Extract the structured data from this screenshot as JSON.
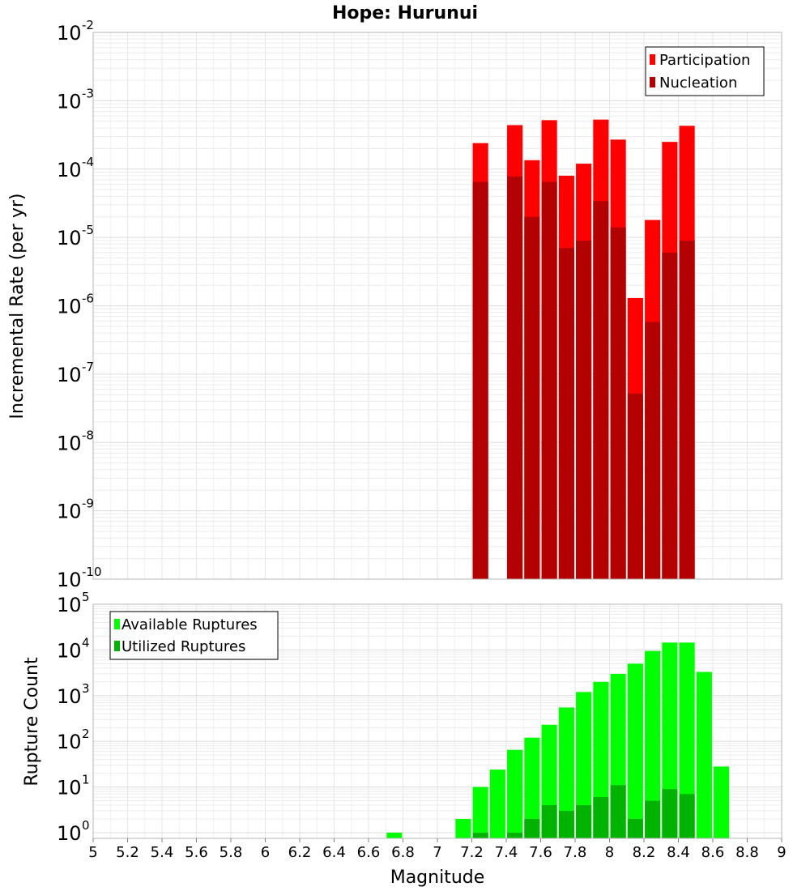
{
  "chart_data": [
    {
      "type": "bar",
      "title": "Hope: Hurunui",
      "xlabel": "",
      "ylabel": "Incremental Rate (per yr)",
      "yscale": "log",
      "xlim": [
        5,
        9
      ],
      "ylim": [
        1e-10,
        0.01
      ],
      "bar_width": 0.1,
      "legend_position": "top-right",
      "x": [
        7.25,
        7.45,
        7.55,
        7.65,
        7.75,
        7.85,
        7.95,
        8.05,
        8.15,
        8.25,
        8.35,
        8.45
      ],
      "series": [
        {
          "name": "Participation",
          "color": "#ff0000",
          "values": [
            0.00024,
            0.00044,
            0.000135,
            0.00052,
            8e-05,
            0.00012,
            0.00053,
            0.00027,
            1.3e-06,
            1.8e-05,
            0.00025,
            0.00043
          ]
        },
        {
          "name": "Nucleation",
          "color": "#b30000",
          "values": [
            6.5e-05,
            7.8e-05,
            2e-05,
            6.5e-05,
            7e-06,
            9e-06,
            3.4e-05,
            1.4e-05,
            5.2e-08,
            5.8e-07,
            6e-06,
            9e-06
          ]
        }
      ],
      "y_ticks": [
        {
          "base": "10",
          "exp": "-10"
        },
        {
          "base": "10",
          "exp": "-9"
        },
        {
          "base": "10",
          "exp": "-8"
        },
        {
          "base": "10",
          "exp": "-7"
        },
        {
          "base": "10",
          "exp": "-6"
        },
        {
          "base": "10",
          "exp": "-5"
        },
        {
          "base": "10",
          "exp": "-4"
        },
        {
          "base": "10",
          "exp": "-3"
        },
        {
          "base": "10",
          "exp": "-2"
        }
      ]
    },
    {
      "type": "bar",
      "title": "",
      "xlabel": "Magnitude",
      "ylabel": "Rupture Count",
      "yscale": "log",
      "xlim": [
        5,
        9
      ],
      "ylim": [
        0.75,
        100000.0
      ],
      "bar_width": 0.1,
      "legend_position": "top-left",
      "series": [
        {
          "name": "Available Ruptures",
          "color": "#00ff00",
          "x": [
            6.75,
            7.15,
            7.25,
            7.35,
            7.45,
            7.55,
            7.65,
            7.75,
            7.85,
            7.95,
            8.05,
            8.15,
            8.25,
            8.35,
            8.45,
            8.55,
            8.65
          ],
          "values": [
            1,
            2,
            10,
            24,
            65,
            120,
            230,
            550,
            1200,
            2000,
            3000,
            5000,
            9500,
            14500,
            14500,
            3300,
            28
          ]
        },
        {
          "name": "Utilized Ruptures",
          "color": "#00b300",
          "x": [
            7.25,
            7.45,
            7.55,
            7.65,
            7.75,
            7.85,
            7.95,
            8.05,
            8.15,
            8.25,
            8.35,
            8.45
          ],
          "values": [
            1,
            1,
            2,
            4,
            3,
            4,
            6,
            11,
            2,
            5,
            9,
            7
          ]
        }
      ],
      "x_ticks": [
        "5",
        "5.2",
        "5.4",
        "5.6",
        "5.8",
        "6",
        "6.2",
        "6.4",
        "6.6",
        "6.8",
        "7",
        "7.2",
        "7.4",
        "7.6",
        "7.8",
        "8",
        "8.2",
        "8.4",
        "8.6",
        "8.8",
        "9"
      ],
      "y_ticks": [
        {
          "base": "10",
          "exp": "0"
        },
        {
          "base": "10",
          "exp": "1"
        },
        {
          "base": "10",
          "exp": "2"
        },
        {
          "base": "10",
          "exp": "3"
        },
        {
          "base": "10",
          "exp": "4"
        },
        {
          "base": "10",
          "exp": "5"
        }
      ]
    }
  ]
}
